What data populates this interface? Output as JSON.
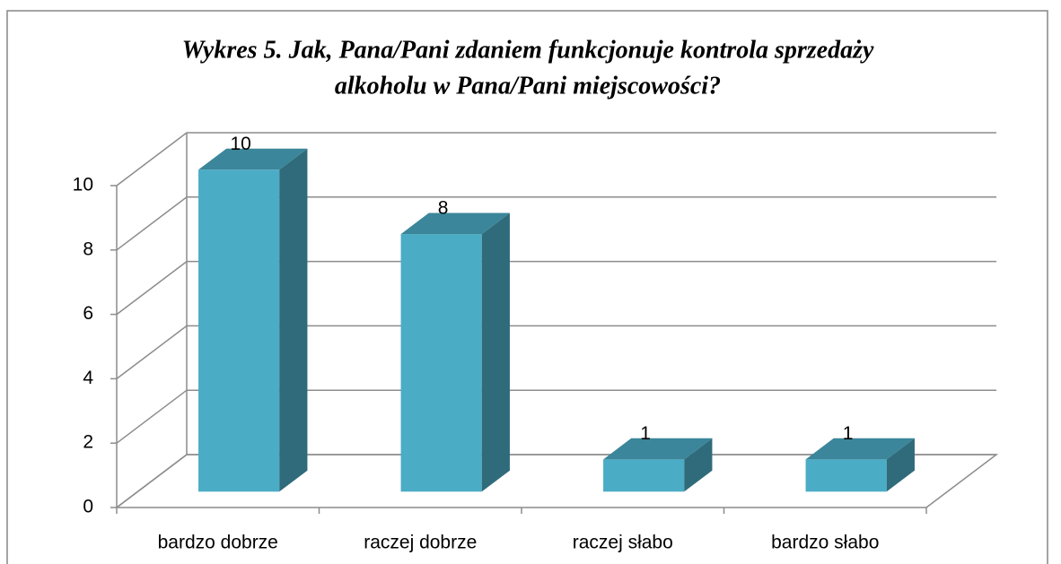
{
  "chart_data": {
    "type": "bar3d",
    "title": [
      "Wykres 5. Jak, Pana/Pani zdaniem funkcjonuje kontrola sprzedaży",
      "alkoholu w Pana/Pani miejscowości?"
    ],
    "categories": [
      "bardzo dobrze",
      "raczej dobrze",
      "raczej słabo",
      "bardzo słabo"
    ],
    "values": [
      10,
      8,
      1,
      1
    ],
    "color": "#4bacc6",
    "ylim": [
      0,
      10
    ],
    "yticks": [
      0,
      2,
      4,
      6,
      8,
      10
    ],
    "grid": true
  }
}
